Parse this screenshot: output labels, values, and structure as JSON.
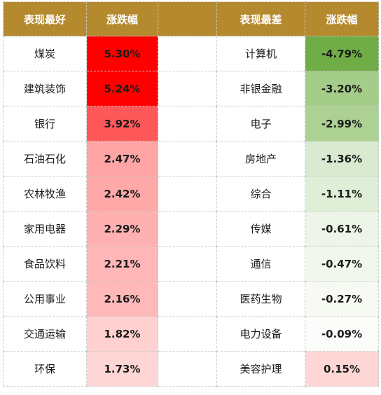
{
  "headers": [
    "表现最好",
    "涨跌幅",
    "",
    "表现最差",
    "涨跌幅"
  ],
  "best": [
    {
      "name": "煤炭",
      "value": "5.30%",
      "color": "#ff0000"
    },
    {
      "name": "建筑装饰",
      "value": "5.24%",
      "color": "#ff0000"
    },
    {
      "name": "银行",
      "value": "3.92%",
      "color": "#ff5858"
    },
    {
      "name": "石油石化",
      "value": "2.47%",
      "color": "#ffa5a5"
    },
    {
      "name": "农林牧渔",
      "value": "2.42%",
      "color": "#ffa8a8"
    },
    {
      "name": "家用电器",
      "value": "2.29%",
      "color": "#ffb1b1"
    },
    {
      "name": "食品饮料",
      "value": "2.21%",
      "color": "#ffb6b6"
    },
    {
      "name": "公用事业",
      "value": "2.16%",
      "color": "#ffb9b9"
    },
    {
      "name": "交通运输",
      "value": "1.82%",
      "color": "#ffd0d0"
    },
    {
      "name": "环保",
      "value": "1.73%",
      "color": "#ffd6d6"
    }
  ],
  "worst": [
    {
      "name": "计算机",
      "value": "-4.79%",
      "color": "#70ad47"
    },
    {
      "name": "非银金融",
      "value": "-3.20%",
      "color": "#a5cd8a"
    },
    {
      "name": "电子",
      "value": "-2.99%",
      "color": "#acd193"
    },
    {
      "name": "房地产",
      "value": "-1.36%",
      "color": "#d9ead0"
    },
    {
      "name": "综合",
      "value": "-1.11%",
      "color": "#dfeed6"
    },
    {
      "name": "传媒",
      "value": "-0.61%",
      "color": "#edf5e8"
    },
    {
      "name": "通信",
      "value": "-0.47%",
      "color": "#f1f7ec"
    },
    {
      "name": "医药生物",
      "value": "-0.27%",
      "color": "#f6faf3"
    },
    {
      "name": "电力设备",
      "value": "-0.09%",
      "color": "#fcfdfb"
    },
    {
      "name": "美容护理",
      "value": "0.15%",
      "color": "#ffd6d6"
    }
  ]
}
